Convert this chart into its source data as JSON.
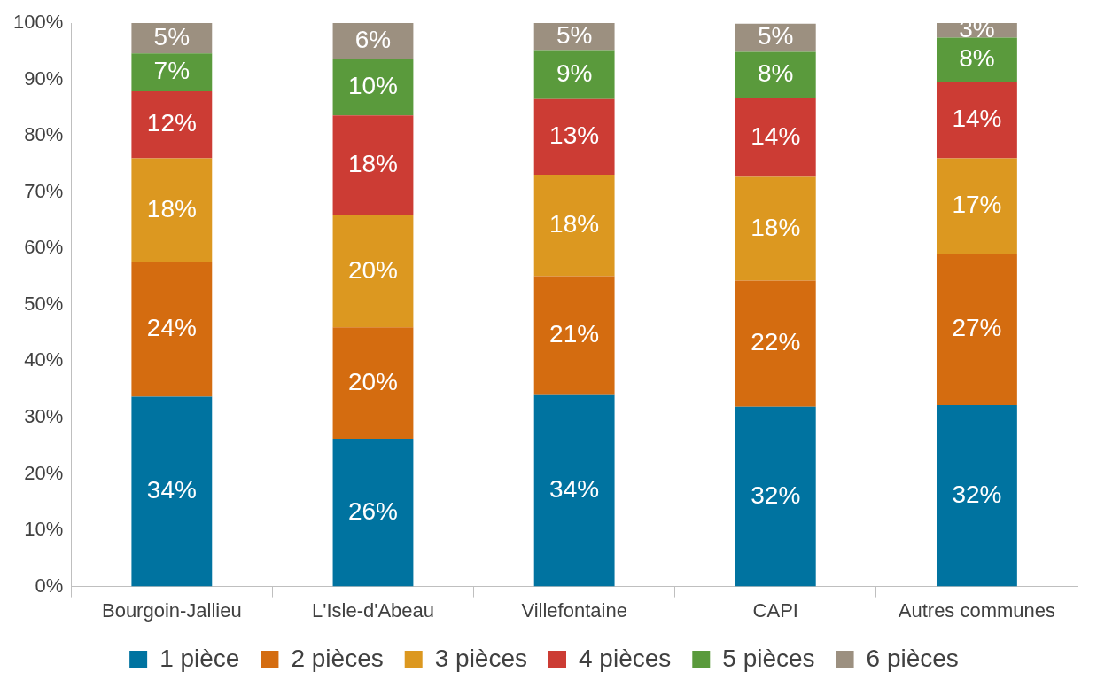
{
  "chart_data": {
    "type": "bar",
    "stacked": true,
    "categories": [
      "Bourgoin-Jallieu",
      "L'Isle-d'Abeau",
      "Villefontaine",
      "CAPI",
      "Autres communes"
    ],
    "series": [
      {
        "name": "1 pièce",
        "color": "#0073a0",
        "values": [
          33.7,
          26.2,
          34.1,
          31.9,
          32.2
        ],
        "value_labels": [
          "34%",
          "26%",
          "34%",
          "32%",
          "32%"
        ]
      },
      {
        "name": "2 pièces",
        "color": "#d46c10",
        "values": [
          23.9,
          19.8,
          21.0,
          22.4,
          26.8
        ],
        "value_labels": [
          "24%",
          "20%",
          "21%",
          "22%",
          "27%"
        ]
      },
      {
        "name": "3 pièces",
        "color": "#dc9820",
        "values": [
          18.4,
          19.9,
          18.0,
          18.4,
          17.0
        ],
        "value_labels": [
          "18%",
          "20%",
          "18%",
          "18%",
          "17%"
        ]
      },
      {
        "name": "4 pièces",
        "color": "#cc3c34",
        "values": [
          11.9,
          17.7,
          13.4,
          14.0,
          13.6
        ],
        "value_labels": [
          "12%",
          "18%",
          "13%",
          "14%",
          "14%"
        ]
      },
      {
        "name": "5 pièces",
        "color": "#5a9a3c",
        "values": [
          6.7,
          10.1,
          8.7,
          8.2,
          7.8
        ],
        "value_labels": [
          "7%",
          "10%",
          "9%",
          "8%",
          "8%"
        ]
      },
      {
        "name": "6 pièces",
        "color": "#9c9080",
        "values": [
          5.4,
          6.3,
          4.8,
          5.0,
          2.6
        ],
        "value_labels": [
          "5%",
          "6%",
          "5%",
          "5%",
          "3%"
        ]
      }
    ],
    "ylim": [
      0,
      100
    ],
    "yticks": [
      {
        "value": 0,
        "label": "0%"
      },
      {
        "value": 10,
        "label": "10%"
      },
      {
        "value": 20,
        "label": "20%"
      },
      {
        "value": 30,
        "label": "30%"
      },
      {
        "value": 40,
        "label": "40%"
      },
      {
        "value": 50,
        "label": "50%"
      },
      {
        "value": 60,
        "label": "60%"
      },
      {
        "value": 70,
        "label": "70%"
      },
      {
        "value": 80,
        "label": "80%"
      },
      {
        "value": 90,
        "label": "90%"
      },
      {
        "value": 100,
        "label": "100%"
      }
    ],
    "grid": false,
    "legend": "bottom"
  }
}
